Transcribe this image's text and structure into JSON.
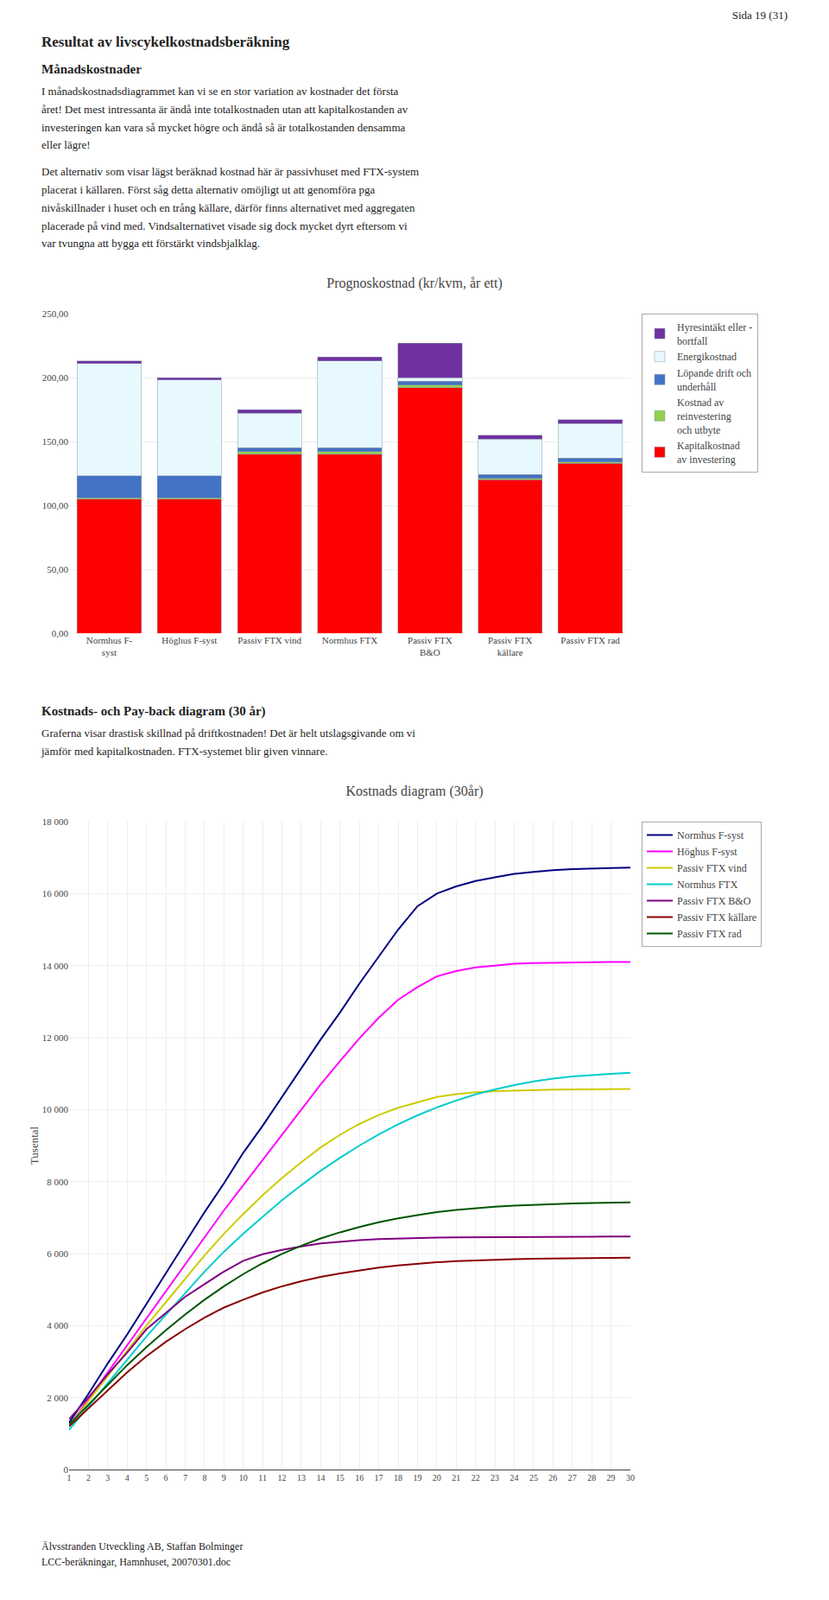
{
  "page_header": "Sida 19 (31)",
  "section_title": "Resultat av livscykelkostnadsberäkning",
  "subsection1_title": "Månadskostnader",
  "subsection1_text1": "I månadskostnadsdiagrammet kan vi se en stor variation av kostnader det första\nåret! Det mest intressanta är ändå inte totalkostnaden utan att kapitalkostanden av\ninvesteringen kan vara så mycket högre och ändå så är totalkostanden densamma\neller lägre!",
  "subsection1_text2": "Det alternativ som visar lägst beräknad kostnad här är passivhuset med FTX-system\nplacerat i källaren. Först såg detta alternativ omöjligt ut att genomföra pga\nnivåskillnader i huset och en trång källare, därför finns alternativet med aggregaten\nplacerade på vind med. Vindsalternativet visade sig dock mycket dyrt eftersom vi\nvar tvungna att bygga ett förstärkt vindsbjalklag.",
  "subsection2_title": "Kostnads- och Pay-back diagram (30 år)",
  "subsection2_text": "Graferna visar drastisk skillnad på driftkostnaden! Det är helt utslagsgivande om vi\njämför med kapitalkostnaden. FTX-systemet blir given vinnare.",
  "footer_text": "Älvsstranden Utveckling AB, Staffan Bolminger\nLCC-beräkningar, Hamnhuset, 20070301.doc",
  "chart_data": [
    {
      "type": "bar",
      "stacked": true,
      "title": "Prognoskostnad (kr/kvm, år ett)",
      "categories": [
        "Normhus F-\nsyst",
        "Höghus F-syst",
        "Passiv FTX vind",
        "Normhus FTX",
        "Passiv FTX\nB&O",
        "Passiv FTX\nkällare",
        "Passiv FTX rad"
      ],
      "series": [
        {
          "name": "Kapitalkostnad\nav investering",
          "color": "#FF0000",
          "values": [
            105,
            105,
            140,
            140,
            192,
            120,
            133
          ]
        },
        {
          "name": "Kostnad av\nreinvestering\noch utbyte",
          "color": "#92D050",
          "values": [
            1,
            1,
            2,
            2,
            2,
            1,
            1
          ]
        },
        {
          "name": "Löpande drift och\nunderhåll",
          "color": "#4472C4",
          "values": [
            17,
            17,
            3,
            3,
            3,
            3,
            3
          ]
        },
        {
          "name": "Energikostnad",
          "color": "#E8F8FF",
          "values": [
            88,
            75,
            27,
            68,
            3,
            28,
            27
          ]
        },
        {
          "name": "Hyresintäkt eller -\nbortfall",
          "color": "#7030A0",
          "values": [
            2,
            2,
            3,
            3,
            27,
            3,
            3
          ]
        }
      ],
      "ylim": [
        0,
        250
      ],
      "yticks": [
        {
          "value": 0,
          "label": "0,00"
        },
        {
          "value": 50,
          "label": "50,00"
        },
        {
          "value": 100,
          "label": "100,00"
        },
        {
          "value": 150,
          "label": "150,00"
        },
        {
          "value": 200,
          "label": "200,00"
        },
        {
          "value": 250,
          "label": "250,00"
        }
      ],
      "grid": "y",
      "legend": "right"
    },
    {
      "type": "line",
      "title": "Kostnads diagram (30år)",
      "ylabel": "Tusental",
      "x": [
        1,
        2,
        3,
        4,
        5,
        6,
        7,
        8,
        9,
        10,
        11,
        12,
        13,
        14,
        15,
        16,
        17,
        18,
        19,
        20,
        21,
        22,
        23,
        24,
        25,
        26,
        27,
        28,
        29,
        30
      ],
      "xlim": [
        1,
        30
      ],
      "xticks": [
        1,
        2,
        3,
        4,
        5,
        6,
        7,
        8,
        9,
        10,
        11,
        12,
        13,
        14,
        15,
        16,
        17,
        18,
        19,
        20,
        21,
        22,
        23,
        24,
        25,
        26,
        27,
        28,
        29,
        30
      ],
      "ylim": [
        0,
        18000
      ],
      "yticks": [
        0,
        {
          "value": 2000,
          "label": "2 000"
        },
        {
          "value": 4000,
          "label": "4 000"
        },
        {
          "value": 6000,
          "label": "6 000"
        },
        {
          "value": 8000,
          "label": "8 000"
        },
        {
          "value": 10000,
          "label": "10 000"
        },
        {
          "value": 12000,
          "label": "12 000"
        },
        {
          "value": 14000,
          "label": "14 000"
        },
        {
          "value": 16000,
          "label": "16 000"
        },
        {
          "value": 18000,
          "label": "18 000"
        }
      ],
      "grid": true,
      "legend": "right",
      "series": [
        {
          "name": "Normhus F-syst",
          "color": "#000080",
          "values": [
            1300,
            2100,
            2950,
            3750,
            4600,
            5450,
            6300,
            7150,
            7950,
            8800,
            9550,
            10350,
            11150,
            11950,
            12700,
            13500,
            14250,
            15000,
            15650,
            16000,
            16200,
            16350,
            16450,
            16550,
            16600,
            16650,
            16680,
            16700,
            16710,
            16720
          ]
        },
        {
          "name": "Höghus F-syst",
          "color": "#FF00FF",
          "values": [
            1200,
            1950,
            2700,
            3450,
            4200,
            4950,
            5700,
            6450,
            7200,
            7900,
            8600,
            9300,
            10000,
            10700,
            11350,
            11980,
            12550,
            13050,
            13400,
            13700,
            13850,
            13950,
            14000,
            14050,
            14070,
            14080,
            14090,
            14095,
            14098,
            14100
          ]
        },
        {
          "name": "Passiv FTX vind",
          "color": "#CCCC00",
          "values": [
            1200,
            1900,
            2600,
            3300,
            4000,
            4650,
            5300,
            5950,
            6550,
            7100,
            7620,
            8100,
            8540,
            8950,
            9300,
            9600,
            9850,
            10050,
            10200,
            10350,
            10430,
            10480,
            10510,
            10530,
            10545,
            10555,
            10562,
            10567,
            10570,
            10572
          ]
        },
        {
          "name": "Normhus FTX",
          "color": "#00CCCC",
          "values": [
            1100,
            1750,
            2400,
            3050,
            3700,
            4300,
            4900,
            5500,
            6050,
            6550,
            7020,
            7480,
            7900,
            8300,
            8660,
            9000,
            9310,
            9590,
            9840,
            10060,
            10250,
            10420,
            10560,
            10680,
            10780,
            10860,
            10920,
            10965,
            10995,
            11020
          ]
        },
        {
          "name": "Passiv FTX B&O",
          "color": "#800080",
          "values": [
            1400,
            2000,
            2650,
            3250,
            3900,
            4350,
            4800,
            5150,
            5500,
            5800,
            5980,
            6100,
            6200,
            6280,
            6330,
            6370,
            6400,
            6420,
            6435,
            6445,
            6452,
            6457,
            6461,
            6464,
            6466,
            6468,
            6470,
            6471,
            6472,
            6473
          ]
        },
        {
          "name": "Passiv FTX källare",
          "color": "#8B0000",
          "values": [
            1200,
            1700,
            2200,
            2700,
            3150,
            3550,
            3900,
            4220,
            4500,
            4720,
            4920,
            5090,
            5230,
            5350,
            5450,
            5535,
            5610,
            5670,
            5720,
            5760,
            5790,
            5815,
            5833,
            5847,
            5858,
            5867,
            5874,
            5880,
            5885,
            5889
          ]
        },
        {
          "name": "Passiv FTX rad",
          "color": "#005500",
          "values": [
            1250,
            1800,
            2350,
            2900,
            3400,
            3870,
            4310,
            4720,
            5090,
            5430,
            5730,
            5990,
            6220,
            6420,
            6590,
            6740,
            6870,
            6980,
            7070,
            7150,
            7210,
            7260,
            7300,
            7330,
            7355,
            7375,
            7390,
            7403,
            7413,
            7420
          ]
        }
      ]
    }
  ]
}
